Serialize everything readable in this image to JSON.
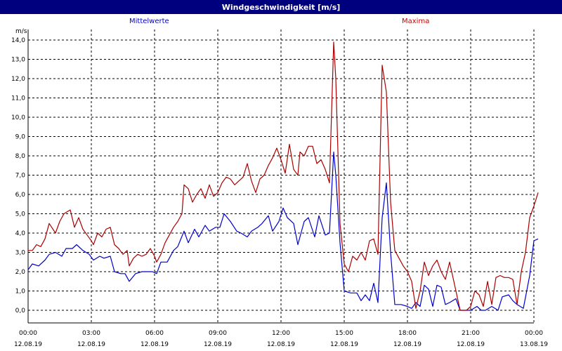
{
  "window": {
    "title": "Windgeschwindigkeit [m/s]"
  },
  "colors": {
    "titlebar": "#00007f",
    "mean": "#0000cc",
    "max": "#aa0000",
    "grid": "#000000"
  },
  "chart_data": {
    "type": "line",
    "title": "Windgeschwindigkeit [m/s]",
    "ylabel": "m/s",
    "ylim": [
      0,
      14
    ],
    "yticks": [
      "0,0",
      "1,0",
      "2,0",
      "3,0",
      "4,0",
      "5,0",
      "6,0",
      "7,0",
      "8,0",
      "9,0",
      "10,0",
      "11,0",
      "12,0",
      "13,0",
      "14,0"
    ],
    "xlim_hours": [
      0,
      24
    ],
    "xticks": [
      {
        "time": "00:00",
        "date": "12.08.19"
      },
      {
        "time": "03:00",
        "date": "12.08.19"
      },
      {
        "time": "06:00",
        "date": "12.08.19"
      },
      {
        "time": "09:00",
        "date": "12.08.19"
      },
      {
        "time": "12:00",
        "date": "12.08.19"
      },
      {
        "time": "15:00",
        "date": "12.08.19"
      },
      {
        "time": "18:00",
        "date": "12.08.19"
      },
      {
        "time": "21:00",
        "date": "12.08.19"
      },
      {
        "time": "00:00",
        "date": "13.08.19"
      }
    ],
    "grid": true,
    "series": [
      {
        "name": "Mittelwerte",
        "points": [
          [
            0.0,
            2.1
          ],
          [
            0.2,
            2.4
          ],
          [
            0.5,
            2.3
          ],
          [
            0.8,
            2.6
          ],
          [
            1.0,
            2.9
          ],
          [
            1.3,
            3.0
          ],
          [
            1.6,
            2.8
          ],
          [
            1.8,
            3.2
          ],
          [
            2.1,
            3.2
          ],
          [
            2.3,
            3.4
          ],
          [
            2.6,
            3.1
          ],
          [
            2.9,
            2.9
          ],
          [
            3.1,
            2.6
          ],
          [
            3.4,
            2.8
          ],
          [
            3.6,
            2.7
          ],
          [
            3.9,
            2.8
          ],
          [
            4.1,
            2.0
          ],
          [
            4.4,
            1.9
          ],
          [
            4.6,
            1.9
          ],
          [
            4.8,
            1.5
          ],
          [
            5.1,
            1.9
          ],
          [
            5.4,
            2.0
          ],
          [
            5.6,
            2.0
          ],
          [
            5.9,
            2.0
          ],
          [
            6.1,
            1.9
          ],
          [
            6.3,
            2.5
          ],
          [
            6.6,
            2.5
          ],
          [
            6.9,
            3.1
          ],
          [
            7.1,
            3.3
          ],
          [
            7.4,
            4.1
          ],
          [
            7.6,
            3.5
          ],
          [
            7.9,
            4.2
          ],
          [
            8.1,
            3.8
          ],
          [
            8.4,
            4.4
          ],
          [
            8.6,
            4.1
          ],
          [
            8.9,
            4.3
          ],
          [
            9.1,
            4.3
          ],
          [
            9.3,
            5.0
          ],
          [
            9.6,
            4.6
          ],
          [
            9.9,
            4.1
          ],
          [
            10.1,
            4.0
          ],
          [
            10.4,
            3.8
          ],
          [
            10.6,
            4.1
          ],
          [
            10.9,
            4.3
          ],
          [
            11.1,
            4.5
          ],
          [
            11.4,
            4.9
          ],
          [
            11.6,
            4.1
          ],
          [
            11.9,
            4.6
          ],
          [
            12.1,
            5.3
          ],
          [
            12.3,
            4.8
          ],
          [
            12.6,
            4.5
          ],
          [
            12.8,
            3.4
          ],
          [
            13.1,
            4.6
          ],
          [
            13.3,
            4.8
          ],
          [
            13.6,
            3.8
          ],
          [
            13.8,
            4.9
          ],
          [
            14.1,
            3.9
          ],
          [
            14.3,
            4.0
          ],
          [
            14.5,
            8.2
          ],
          [
            14.6,
            7.0
          ],
          [
            14.8,
            3.5
          ],
          [
            15.0,
            1.0
          ],
          [
            15.3,
            0.9
          ],
          [
            15.6,
            0.9
          ],
          [
            15.8,
            0.5
          ],
          [
            16.0,
            0.8
          ],
          [
            16.2,
            0.5
          ],
          [
            16.4,
            1.4
          ],
          [
            16.6,
            0.4
          ],
          [
            16.8,
            4.8
          ],
          [
            17.0,
            6.6
          ],
          [
            17.2,
            3.0
          ],
          [
            17.4,
            0.3
          ],
          [
            17.7,
            0.3
          ],
          [
            18.0,
            0.2
          ],
          [
            18.2,
            0.1
          ],
          [
            18.4,
            0.4
          ],
          [
            18.6,
            0.2
          ],
          [
            18.8,
            1.3
          ],
          [
            19.0,
            1.1
          ],
          [
            19.2,
            0.2
          ],
          [
            19.4,
            1.3
          ],
          [
            19.6,
            1.2
          ],
          [
            19.8,
            0.3
          ],
          [
            20.0,
            0.4
          ],
          [
            20.3,
            0.6
          ],
          [
            20.5,
            0.0
          ],
          [
            20.8,
            0.0
          ],
          [
            21.0,
            0.0
          ],
          [
            21.3,
            0.2
          ],
          [
            21.5,
            0.0
          ],
          [
            21.7,
            0.0
          ],
          [
            22.0,
            0.2
          ],
          [
            22.3,
            0.0
          ],
          [
            22.5,
            0.7
          ],
          [
            22.8,
            0.8
          ],
          [
            23.0,
            0.5
          ],
          [
            23.2,
            0.3
          ],
          [
            23.5,
            0.1
          ],
          [
            23.8,
            1.8
          ],
          [
            24.0,
            3.6
          ],
          [
            24.2,
            3.7
          ]
        ]
      },
      {
        "name": "Maxima",
        "points": [
          [
            0.0,
            3.1
          ],
          [
            0.2,
            3.1
          ],
          [
            0.4,
            3.4
          ],
          [
            0.6,
            3.3
          ],
          [
            0.8,
            3.7
          ],
          [
            1.0,
            4.5
          ],
          [
            1.3,
            4.0
          ],
          [
            1.5,
            4.6
          ],
          [
            1.7,
            5.0
          ],
          [
            2.0,
            5.2
          ],
          [
            2.2,
            4.3
          ],
          [
            2.4,
            4.8
          ],
          [
            2.6,
            4.2
          ],
          [
            2.8,
            3.9
          ],
          [
            3.0,
            3.6
          ],
          [
            3.1,
            3.4
          ],
          [
            3.3,
            4.0
          ],
          [
            3.5,
            3.8
          ],
          [
            3.7,
            4.2
          ],
          [
            3.9,
            4.3
          ],
          [
            4.1,
            3.4
          ],
          [
            4.3,
            3.2
          ],
          [
            4.5,
            2.9
          ],
          [
            4.7,
            3.1
          ],
          [
            4.8,
            2.3
          ],
          [
            5.0,
            2.7
          ],
          [
            5.2,
            2.9
          ],
          [
            5.4,
            2.8
          ],
          [
            5.6,
            2.9
          ],
          [
            5.8,
            3.2
          ],
          [
            6.0,
            2.8
          ],
          [
            6.1,
            2.5
          ],
          [
            6.3,
            2.9
          ],
          [
            6.5,
            3.5
          ],
          [
            6.7,
            3.9
          ],
          [
            6.9,
            4.3
          ],
          [
            7.1,
            4.6
          ],
          [
            7.3,
            5.0
          ],
          [
            7.4,
            6.5
          ],
          [
            7.6,
            6.3
          ],
          [
            7.8,
            5.6
          ],
          [
            8.0,
            6.0
          ],
          [
            8.2,
            6.3
          ],
          [
            8.4,
            5.8
          ],
          [
            8.6,
            6.5
          ],
          [
            8.8,
            5.9
          ],
          [
            9.0,
            6.1
          ],
          [
            9.2,
            6.6
          ],
          [
            9.4,
            6.9
          ],
          [
            9.6,
            6.8
          ],
          [
            9.8,
            6.5
          ],
          [
            10.0,
            6.7
          ],
          [
            10.2,
            6.9
          ],
          [
            10.4,
            7.6
          ],
          [
            10.6,
            6.7
          ],
          [
            10.8,
            6.1
          ],
          [
            11.0,
            6.8
          ],
          [
            11.2,
            7.0
          ],
          [
            11.4,
            7.5
          ],
          [
            11.6,
            7.9
          ],
          [
            11.8,
            8.4
          ],
          [
            12.0,
            7.8
          ],
          [
            12.2,
            7.1
          ],
          [
            12.4,
            8.6
          ],
          [
            12.6,
            7.3
          ],
          [
            12.8,
            7.0
          ],
          [
            12.9,
            8.2
          ],
          [
            13.1,
            8.0
          ],
          [
            13.3,
            8.5
          ],
          [
            13.5,
            8.5
          ],
          [
            13.7,
            7.6
          ],
          [
            13.9,
            7.8
          ],
          [
            14.1,
            7.3
          ],
          [
            14.3,
            6.6
          ],
          [
            14.5,
            13.9
          ],
          [
            14.6,
            12.0
          ],
          [
            14.8,
            4.5
          ],
          [
            15.0,
            2.4
          ],
          [
            15.2,
            2.0
          ],
          [
            15.4,
            2.8
          ],
          [
            15.6,
            2.6
          ],
          [
            15.8,
            3.0
          ],
          [
            16.0,
            2.6
          ],
          [
            16.2,
            3.6
          ],
          [
            16.4,
            3.7
          ],
          [
            16.6,
            2.9
          ],
          [
            16.8,
            12.7
          ],
          [
            17.0,
            11.3
          ],
          [
            17.2,
            5.6
          ],
          [
            17.4,
            3.1
          ],
          [
            17.6,
            2.7
          ],
          [
            17.8,
            2.3
          ],
          [
            18.0,
            2.0
          ],
          [
            18.2,
            1.5
          ],
          [
            18.4,
            0.1
          ],
          [
            18.6,
            1.0
          ],
          [
            18.8,
            2.5
          ],
          [
            19.0,
            1.8
          ],
          [
            19.2,
            2.3
          ],
          [
            19.4,
            2.6
          ],
          [
            19.6,
            2.0
          ],
          [
            19.8,
            1.6
          ],
          [
            20.0,
            2.5
          ],
          [
            20.2,
            1.5
          ],
          [
            20.5,
            0.0
          ],
          [
            20.8,
            0.0
          ],
          [
            21.0,
            0.2
          ],
          [
            21.2,
            1.0
          ],
          [
            21.4,
            0.8
          ],
          [
            21.6,
            0.2
          ],
          [
            21.8,
            1.5
          ],
          [
            22.0,
            0.3
          ],
          [
            22.2,
            1.7
          ],
          [
            22.4,
            1.8
          ],
          [
            22.6,
            1.7
          ],
          [
            22.8,
            1.7
          ],
          [
            23.0,
            1.6
          ],
          [
            23.2,
            0.3
          ],
          [
            23.4,
            2.0
          ],
          [
            23.6,
            3.0
          ],
          [
            23.8,
            4.8
          ],
          [
            24.0,
            5.4
          ],
          [
            24.2,
            6.1
          ]
        ]
      }
    ]
  }
}
